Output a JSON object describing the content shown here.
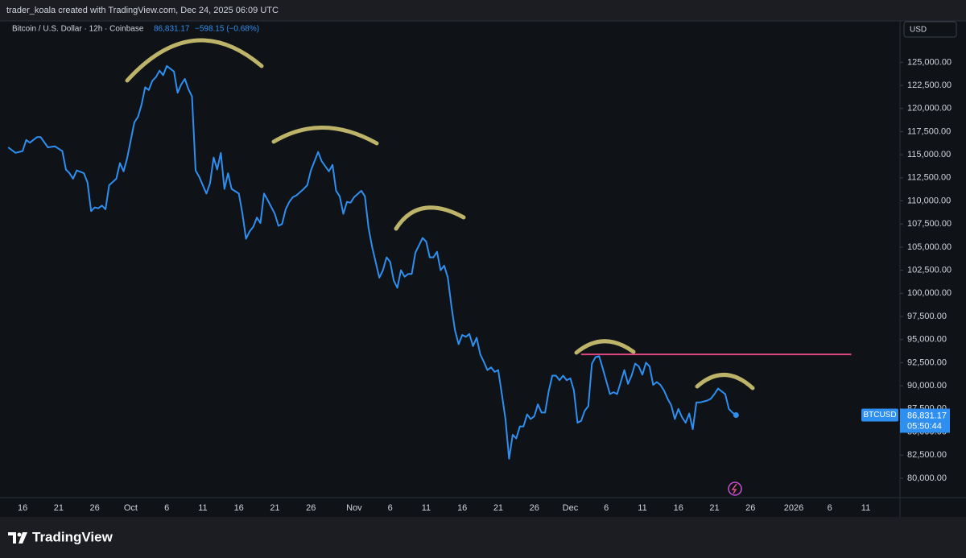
{
  "header": {
    "credit": "trader_koala created with TradingView.com, Dec 24, 2025 06:09 UTC"
  },
  "footer": {
    "brand": "TradingView"
  },
  "chart_data": {
    "type": "line",
    "title": "Bitcoin / U.S. Dollar · 12h · Coinbase",
    "legend_price": "86,831.17",
    "legend_change": "−598.15 (−0.68%)",
    "currency": "USD",
    "last_label": {
      "price": "86,831.17",
      "countdown": "05:50:44"
    },
    "x": [
      0,
      2,
      4,
      5,
      6,
      8,
      9,
      11,
      13,
      15,
      16,
      17,
      18,
      19,
      21,
      22,
      23,
      24,
      25,
      26,
      27,
      28,
      30,
      31,
      32,
      33,
      35,
      36,
      37,
      38,
      39,
      40,
      41,
      42,
      43,
      44,
      46,
      47,
      48,
      49,
      50,
      51,
      52,
      53,
      55,
      56,
      57,
      58,
      59,
      60,
      61,
      62,
      64,
      65,
      66,
      67,
      68,
      69,
      70,
      71,
      72,
      74,
      75,
      76,
      77,
      78,
      79,
      80,
      82,
      83,
      84,
      85,
      86,
      87,
      89,
      90,
      91,
      92,
      93,
      94,
      95,
      96,
      98,
      99,
      100,
      101,
      103,
      104,
      105,
      106,
      107,
      108,
      109,
      110,
      111,
      112,
      113,
      115,
      116,
      117,
      118,
      119,
      120,
      121,
      122,
      123,
      124,
      125,
      126,
      127,
      128,
      129,
      130,
      131,
      132,
      133,
      134,
      135,
      136,
      137,
      138,
      139,
      140,
      141,
      142,
      143,
      144,
      145,
      146,
      147,
      148,
      149,
      150,
      151,
      152,
      153,
      154,
      155,
      156,
      157,
      158,
      159,
      160,
      161,
      162,
      163,
      164,
      165,
      166,
      167,
      168,
      169,
      170,
      171,
      172,
      173,
      174,
      175,
      176,
      177,
      178,
      179,
      180,
      181,
      182,
      183,
      184,
      185,
      186,
      187,
      188,
      189,
      190,
      191,
      192,
      194,
      195,
      196,
      197,
      199,
      200,
      201,
      202
    ],
    "series": [
      {
        "name": "BTCUSD",
        "color": "#2e8ff0",
        "values": [
          115800,
          115200,
          115400,
          116600,
          116300,
          116900,
          116900,
          115800,
          115900,
          115400,
          113400,
          113000,
          112400,
          113300,
          113000,
          112000,
          108900,
          109300,
          109200,
          109500,
          109100,
          111700,
          112400,
          114100,
          113200,
          114600,
          118500,
          119100,
          120400,
          122300,
          122000,
          123000,
          123400,
          124100,
          123600,
          124600,
          124000,
          121700,
          122600,
          123200,
          122100,
          121300,
          113300,
          112600,
          110800,
          111900,
          114700,
          113400,
          115200,
          111300,
          113000,
          111300,
          110800,
          108600,
          105900,
          106700,
          107200,
          108200,
          107600,
          110800,
          110100,
          108600,
          107300,
          107500,
          109100,
          109900,
          110400,
          110600,
          111300,
          111700,
          113300,
          114300,
          115300,
          114300,
          113200,
          113900,
          111100,
          110500,
          108600,
          109900,
          109800,
          110400,
          111100,
          110500,
          107100,
          105000,
          101700,
          102500,
          103900,
          103400,
          101400,
          100600,
          102500,
          101800,
          102100,
          102100,
          104400,
          106000,
          105600,
          103900,
          103900,
          104500,
          102500,
          103000,
          101700,
          98600,
          96000,
          94500,
          95500,
          95300,
          95600,
          94300,
          95200,
          93400,
          92600,
          91700,
          92000,
          91500,
          91700,
          89100,
          86400,
          82100,
          84700,
          84300,
          85600,
          85600,
          86900,
          86400,
          86700,
          88000,
          87100,
          87100,
          89400,
          91100,
          91100,
          90600,
          91100,
          90600,
          90800,
          89500,
          86000,
          86200,
          87300,
          87800,
          92400,
          93100,
          93200,
          91900,
          90500,
          89100,
          89300,
          89100,
          90400,
          91700,
          90200,
          91100,
          92400,
          92100,
          91200,
          92500,
          92100,
          90100,
          90400,
          90100,
          89500,
          88600,
          87900,
          86400,
          87500,
          86600,
          86000,
          87000,
          85300,
          88200,
          88200,
          88400,
          88600,
          89100,
          89700,
          89100,
          87500,
          87100,
          86831.17
        ]
      }
    ],
    "horizontal_line": {
      "value": 93400,
      "from": 159,
      "to": 234,
      "color": "#e0457b"
    },
    "xlim": [
      -0.5,
      247.5
    ],
    "xticks": [
      {
        "value": 4,
        "label": "16"
      },
      {
        "value": 14,
        "label": "21"
      },
      {
        "value": 24,
        "label": "26"
      },
      {
        "value": 34,
        "label": "Oct"
      },
      {
        "value": 44,
        "label": "6"
      },
      {
        "value": 54,
        "label": "11"
      },
      {
        "value": 64,
        "label": "16"
      },
      {
        "value": 74,
        "label": "21"
      },
      {
        "value": 84,
        "label": "26"
      },
      {
        "value": 96,
        "label": "Nov"
      },
      {
        "value": 106,
        "label": "6"
      },
      {
        "value": 116,
        "label": "11"
      },
      {
        "value": 126,
        "label": "16"
      },
      {
        "value": 136,
        "label": "21"
      },
      {
        "value": 146,
        "label": "26"
      },
      {
        "value": 156,
        "label": "Dec"
      },
      {
        "value": 166,
        "label": "6"
      },
      {
        "value": 176,
        "label": "11"
      },
      {
        "value": 186,
        "label": "16"
      },
      {
        "value": 196,
        "label": "21"
      },
      {
        "value": 206,
        "label": "26"
      },
      {
        "value": 218,
        "label": "2026"
      },
      {
        "value": 228,
        "label": "6"
      },
      {
        "value": 238,
        "label": "11"
      }
    ],
    "ylim": [
      77900,
      129300
    ],
    "yticks": [
      {
        "value": 80000,
        "label": "80,000.00"
      },
      {
        "value": 82500,
        "label": "82,500.00"
      },
      {
        "value": 85000,
        "label": "85,000.00"
      },
      {
        "value": 87500,
        "label": "87,500.00"
      },
      {
        "value": 90000,
        "label": "90,000.00"
      },
      {
        "value": 92500,
        "label": "92,500.00"
      },
      {
        "value": 95000,
        "label": "95,000.00"
      },
      {
        "value": 97500,
        "label": "97,500.00"
      },
      {
        "value": 100000,
        "label": "100,000.00"
      },
      {
        "value": 102500,
        "label": "102,500.00"
      },
      {
        "value": 105000,
        "label": "105,000.00"
      },
      {
        "value": 107500,
        "label": "107,500.00"
      },
      {
        "value": 110000,
        "label": "110,000.00"
      },
      {
        "value": 112500,
        "label": "112,500.00"
      },
      {
        "value": 115000,
        "label": "115,000.00"
      },
      {
        "value": 117500,
        "label": "117,500.00"
      },
      {
        "value": 120000,
        "label": "120,000.00"
      },
      {
        "value": 122500,
        "label": "122,500.00"
      },
      {
        "value": 125000,
        "label": "125,000.00"
      }
    ],
    "grid": false
  }
}
